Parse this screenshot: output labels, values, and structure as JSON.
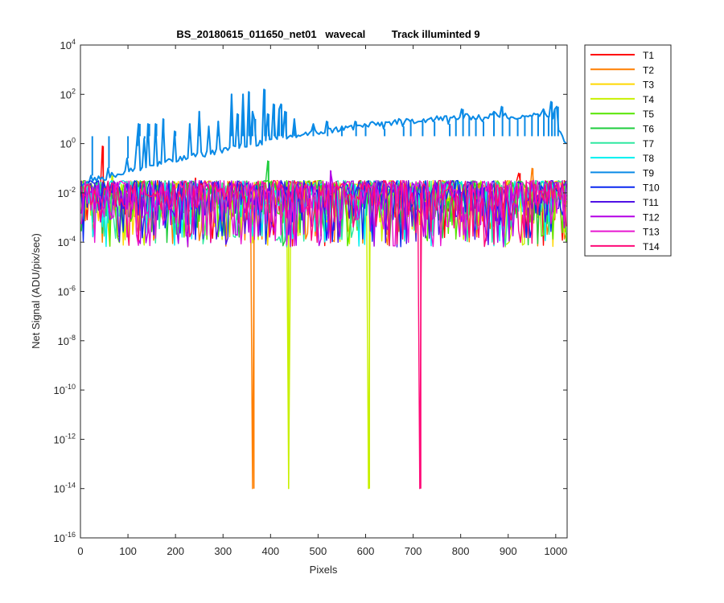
{
  "chart_data": {
    "type": "line",
    "title": "BS_20180615_011650_net01   wavecal         Track illuminted 9",
    "xlabel": "Pixels",
    "ylabel": "Net Signal (ADU/pix/sec)",
    "xlim": [
      0,
      1024
    ],
    "ylim_log10": [
      -16,
      4
    ],
    "yscale": "log",
    "x_ticks": [
      "0",
      "100",
      "200",
      "300",
      "400",
      "500",
      "600",
      "700",
      "800",
      "900",
      "1000"
    ],
    "y_tick_exponents": [
      "4",
      "2",
      "0",
      "-2",
      "-4",
      "-6",
      "-8",
      "-10",
      "-12",
      "-14",
      "-16"
    ],
    "y_tick_base": "10",
    "legend_position": "outside-top-right",
    "noise_band_log10": [
      -4.1,
      -1.4
    ],
    "series": [
      {
        "name": "T1",
        "color": "#ff0000",
        "spikes": [
          [
            48,
            -0.1
          ],
          [
            925,
            -1.2
          ],
          [
            242,
            -1.4
          ]
        ]
      },
      {
        "name": "T2",
        "color": "#ff7f00",
        "spikes": [
          [
            952,
            -1.0
          ],
          [
            365,
            -14
          ],
          [
            644,
            -3.7
          ]
        ]
      },
      {
        "name": "T3",
        "color": "#ffd800",
        "spikes": [
          [
            372,
            -3.0
          ]
        ]
      },
      {
        "name": "T4",
        "color": "#c8f000",
        "spikes": [
          [
            438,
            -14
          ],
          [
            608,
            -14
          ],
          [
            68,
            -1.3
          ],
          [
            1020,
            -3.6
          ]
        ]
      },
      {
        "name": "T5",
        "color": "#55e600",
        "spikes": []
      },
      {
        "name": "T6",
        "color": "#1ecc3c",
        "spikes": [
          [
            396,
            -0.7
          ]
        ]
      },
      {
        "name": "T7",
        "color": "#2ee8a0",
        "spikes": [
          [
            830,
            -3.2
          ]
        ]
      },
      {
        "name": "T8",
        "color": "#00f0f0",
        "spikes": []
      },
      {
        "name": "T9",
        "color": "#0a8ae6",
        "spikes": [
          [
            25,
            -1.3
          ],
          [
            60,
            -1.0
          ],
          [
            100,
            -0.6
          ],
          [
            120,
            -0.1
          ],
          [
            125,
            0.8
          ],
          [
            135,
            0.2
          ],
          [
            145,
            0.8
          ],
          [
            160,
            0.8
          ],
          [
            175,
            1.0
          ],
          [
            200,
            0.5
          ],
          [
            230,
            0.8
          ],
          [
            250,
            1.3
          ],
          [
            270,
            0.7
          ],
          [
            290,
            0.9
          ],
          [
            318,
            2.0
          ],
          [
            332,
            1.2
          ],
          [
            342,
            2.0
          ],
          [
            355,
            2.1
          ],
          [
            362,
            1.3
          ],
          [
            368,
            1.0
          ],
          [
            388,
            2.2
          ],
          [
            396,
            1.2
          ],
          [
            408,
            1.6
          ],
          [
            418,
            1.4
          ],
          [
            423,
            1.6
          ],
          [
            433,
            1.3
          ],
          [
            450,
            1.0
          ],
          [
            490,
            0.8
          ],
          [
            520,
            0.9
          ],
          [
            550,
            0.7
          ],
          [
            580,
            0.9
          ],
          [
            600,
            0.8
          ],
          [
            640,
            0.6
          ],
          [
            680,
            0.7
          ],
          [
            695,
            0.9
          ],
          [
            720,
            0.9
          ],
          [
            745,
            0.9
          ],
          [
            777,
            0.8
          ],
          [
            790,
            1.0
          ],
          [
            805,
            1.4
          ],
          [
            818,
            1.1
          ],
          [
            832,
            1.0
          ],
          [
            848,
            0.9
          ],
          [
            870,
            1.3
          ],
          [
            888,
            1.5
          ],
          [
            903,
            1.0
          ],
          [
            920,
            1.0
          ],
          [
            935,
            1.1
          ],
          [
            950,
            1.1
          ],
          [
            963,
            1.2
          ],
          [
            975,
            1.4
          ],
          [
            985,
            1.1
          ],
          [
            992,
            1.7
          ],
          [
            998,
            1.4
          ],
          [
            1005,
            1.5
          ]
        ]
      },
      {
        "name": "T10",
        "color": "#0a28f0",
        "spikes": []
      },
      {
        "name": "T11",
        "color": "#5012e6",
        "spikes": []
      },
      {
        "name": "T12",
        "color": "#b400e6",
        "spikes": [
          [
            527,
            -1.1
          ]
        ]
      },
      {
        "name": "T13",
        "color": "#e818d0",
        "spikes": []
      },
      {
        "name": "T14",
        "color": "#ff0a78",
        "spikes": [
          [
            716,
            -14
          ]
        ]
      }
    ]
  }
}
